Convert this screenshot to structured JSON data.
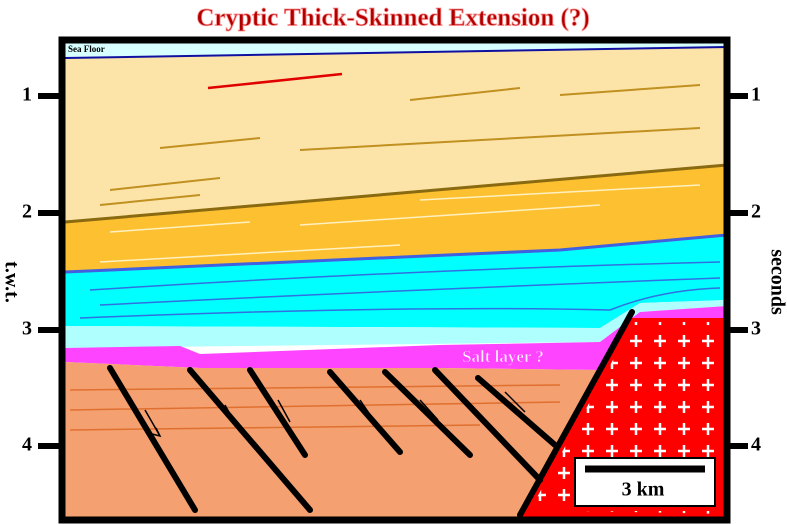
{
  "title": "Cryptic Thick-Skinned Extension (?)",
  "labels": {
    "sea_floor": "Sea Floor",
    "salt_layer": "Salt layer ?",
    "scale_bar": "3 km"
  },
  "left_axis": {
    "label": "t.w.t.",
    "ticks": [
      1,
      2,
      3,
      4
    ]
  },
  "right_axis": {
    "label": "seconds",
    "ticks": [
      1,
      2,
      3,
      4
    ]
  }
}
